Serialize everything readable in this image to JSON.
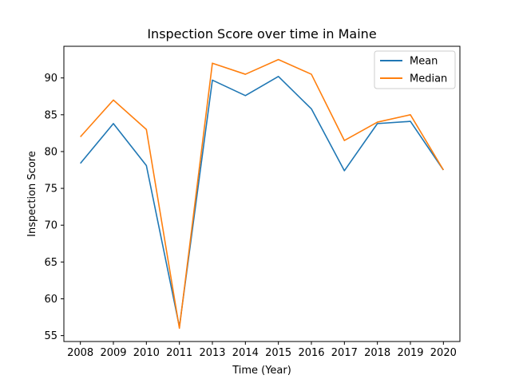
{
  "chart_data": {
    "type": "line",
    "title": "Inspection Score over time in Maine",
    "xlabel": "Time (Year)",
    "ylabel": "Inspection Score",
    "x": [
      2008,
      2009,
      2010,
      2011,
      2013,
      2014,
      2015,
      2016,
      2017,
      2018,
      2019,
      2020
    ],
    "x_tick_labels": [
      "2008",
      "2009",
      "2010",
      "2011",
      "2013",
      "2014",
      "2015",
      "2016",
      "2017",
      "2018",
      "2019",
      "2020"
    ],
    "y_ticks": [
      55,
      60,
      65,
      70,
      75,
      80,
      85,
      90
    ],
    "ylim": [
      54.2,
      94.3
    ],
    "grid": false,
    "legend_position": "top-right",
    "series": [
      {
        "name": "Mean",
        "color": "#1f77b4",
        "values": [
          78.4,
          83.8,
          78.1,
          56.2,
          89.7,
          87.6,
          90.2,
          85.8,
          77.4,
          83.8,
          84.1,
          77.5
        ]
      },
      {
        "name": "Median",
        "color": "#ff7f0e",
        "values": [
          82.0,
          87.0,
          83.0,
          56.0,
          92.0,
          90.5,
          92.5,
          90.5,
          81.5,
          84.0,
          85.0,
          77.5
        ]
      }
    ]
  }
}
